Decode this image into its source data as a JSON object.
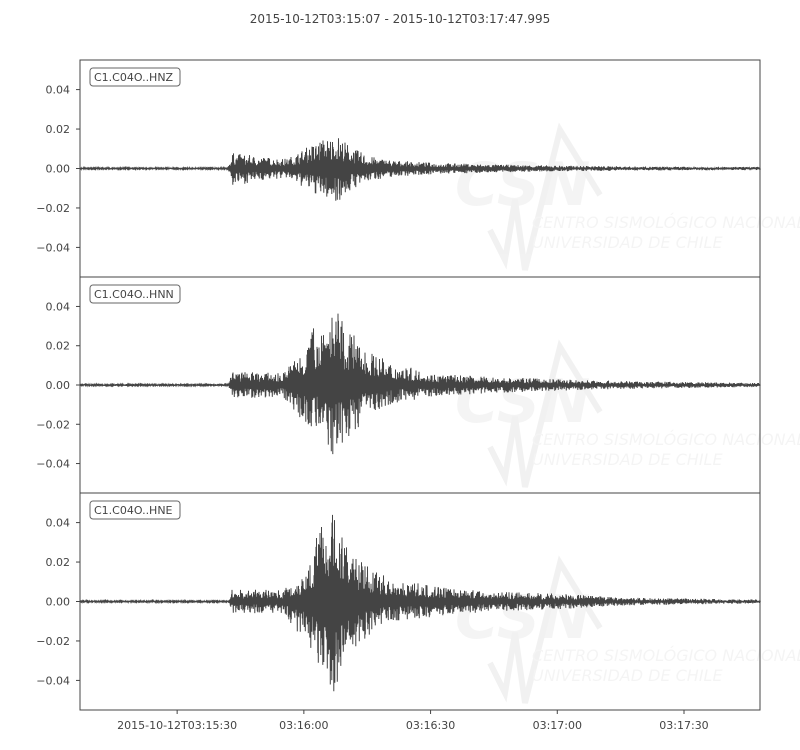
{
  "chart_data": {
    "type": "line",
    "title": "2015-10-12T03:15:07  -  2015-10-12T03:17:47.995",
    "start_time": "2015-10-12T03:15:07",
    "end_time": "2015-10-12T03:17:47.995",
    "ylim": [
      -0.055,
      0.055
    ],
    "grid": false,
    "line_color": "#444444",
    "x_tick_labels": [
      "2015-10-12T03:15:30",
      "03:16:00",
      "03:16:30",
      "03:17:00",
      "03:17:30"
    ],
    "x_tick_times": [
      "03:15:30",
      "03:16:00",
      "03:16:30",
      "03:17:00",
      "03:17:30"
    ],
    "y_ticks": [
      0.04,
      0.02,
      0.0,
      -0.02,
      -0.04
    ],
    "y_tick_labels": [
      "0.04",
      "0.02",
      "0.00",
      "−0.02",
      "−0.04"
    ],
    "watermark": {
      "logo": "CSN",
      "line1": "CENTRO SISMOLÓGICO NACIONAL",
      "line2": "UNIVERSIDAD DE CHILE"
    },
    "series": [
      {
        "name": "C1.C04O..HNZ",
        "envelope_time_min_max": [
          [
            "03:15:07",
            -0.0005,
            0.0005
          ],
          [
            "03:15:42",
            -0.0005,
            0.0005
          ],
          [
            "03:15:43",
            -0.009,
            0.008
          ],
          [
            "03:15:50",
            -0.006,
            0.006
          ],
          [
            "03:15:56",
            -0.005,
            0.005
          ],
          [
            "03:16:00",
            -0.01,
            0.01
          ],
          [
            "03:16:04",
            -0.015,
            0.015
          ],
          [
            "03:16:08",
            -0.017,
            0.017
          ],
          [
            "03:16:12",
            -0.01,
            0.01
          ],
          [
            "03:16:16",
            -0.006,
            0.006
          ],
          [
            "03:16:22",
            -0.004,
            0.004
          ],
          [
            "03:16:30",
            -0.003,
            0.003
          ],
          [
            "03:16:45",
            -0.002,
            0.002
          ],
          [
            "03:17:00",
            -0.0015,
            0.0015
          ],
          [
            "03:17:20",
            -0.001,
            0.001
          ],
          [
            "03:17:48",
            -0.0008,
            0.0008
          ]
        ]
      },
      {
        "name": "C1.C04O..HNN",
        "envelope_time_min_max": [
          [
            "03:15:07",
            -0.0005,
            0.0005
          ],
          [
            "03:15:42",
            -0.0005,
            0.0005
          ],
          [
            "03:15:43",
            -0.007,
            0.007
          ],
          [
            "03:15:55",
            -0.006,
            0.006
          ],
          [
            "03:16:00",
            -0.02,
            0.02
          ],
          [
            "03:16:03",
            -0.023,
            0.033
          ],
          [
            "03:16:07",
            -0.038,
            0.04
          ],
          [
            "03:16:10",
            -0.03,
            0.03
          ],
          [
            "03:16:15",
            -0.015,
            0.018
          ],
          [
            "03:16:20",
            -0.01,
            0.012
          ],
          [
            "03:16:30",
            -0.006,
            0.006
          ],
          [
            "03:16:45",
            -0.004,
            0.004
          ],
          [
            "03:17:00",
            -0.003,
            0.003
          ],
          [
            "03:17:15",
            -0.002,
            0.002
          ],
          [
            "03:17:48",
            -0.001,
            0.001
          ]
        ]
      },
      {
        "name": "C1.C04O..HNE",
        "envelope_time_min_max": [
          [
            "03:15:07",
            -0.0005,
            0.0005
          ],
          [
            "03:15:42",
            -0.0005,
            0.0005
          ],
          [
            "03:15:43",
            -0.006,
            0.006
          ],
          [
            "03:15:55",
            -0.006,
            0.006
          ],
          [
            "03:16:00",
            -0.02,
            0.015
          ],
          [
            "03:16:04",
            -0.036,
            0.04
          ],
          [
            "03:16:07",
            -0.053,
            0.047
          ],
          [
            "03:16:10",
            -0.03,
            0.03
          ],
          [
            "03:16:15",
            -0.018,
            0.018
          ],
          [
            "03:16:20",
            -0.01,
            0.012
          ],
          [
            "03:16:30",
            -0.008,
            0.008
          ],
          [
            "03:16:45",
            -0.005,
            0.005
          ],
          [
            "03:17:00",
            -0.004,
            0.004
          ],
          [
            "03:17:15",
            -0.002,
            0.002
          ],
          [
            "03:17:48",
            -0.001,
            0.001
          ]
        ]
      }
    ]
  }
}
